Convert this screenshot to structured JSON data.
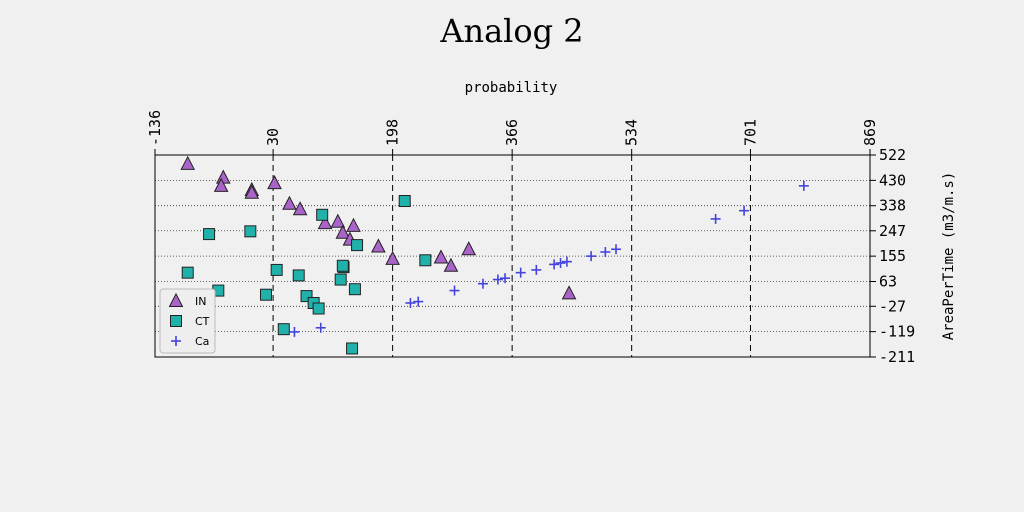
{
  "chart_data": {
    "type": "scatter",
    "title": "Analog 2",
    "xlabel": "probability",
    "ylabel": "AreaPerTime (m3/m.s)",
    "xlim": [
      -136,
      869
    ],
    "ylim": [
      -211,
      522
    ],
    "xticks": [
      "-136",
      "30",
      "198",
      "366",
      "534",
      "701",
      "869"
    ],
    "yticks": [
      "522",
      "430",
      "338",
      "247",
      "155",
      "63",
      "-27",
      "-119",
      "-211"
    ],
    "x_axis_position": "top",
    "y_axis_position": "right",
    "grid": true,
    "legend_position": "lower-left",
    "series": [
      {
        "name": "IN",
        "marker": "triangle",
        "color": "#a963c9",
        "points": [
          [
            -90,
            490
          ],
          [
            -40,
            440
          ],
          [
            -43,
            410
          ],
          [
            0,
            395
          ],
          [
            0,
            385
          ],
          [
            32,
            420
          ],
          [
            53,
            345
          ],
          [
            68,
            325
          ],
          [
            103,
            275
          ],
          [
            121,
            280
          ],
          [
            128,
            240
          ],
          [
            138,
            215
          ],
          [
            143,
            265
          ],
          [
            178,
            190
          ],
          [
            198,
            145
          ],
          [
            266,
            150
          ],
          [
            280,
            120
          ],
          [
            305,
            180
          ],
          [
            446,
            20
          ]
        ]
      },
      {
        "name": "CT",
        "marker": "square",
        "color": "#20b2aa",
        "points": [
          [
            -90,
            95
          ],
          [
            -60,
            235
          ],
          [
            -47,
            30
          ],
          [
            -2,
            245
          ],
          [
            20,
            15
          ],
          [
            35,
            105
          ],
          [
            45,
            -110
          ],
          [
            66,
            85
          ],
          [
            77,
            10
          ],
          [
            87,
            -15
          ],
          [
            94,
            -35
          ],
          [
            99,
            305
          ],
          [
            125,
            70
          ],
          [
            129,
            115
          ],
          [
            128,
            120
          ],
          [
            141,
            -180
          ],
          [
            145,
            35
          ],
          [
            148,
            195
          ],
          [
            215,
            355
          ],
          [
            244,
            140
          ]
        ]
      },
      {
        "name": "Ca",
        "marker": "plus",
        "color": "#4444dd",
        "points": [
          [
            60,
            -120
          ],
          [
            97,
            -105
          ],
          [
            223,
            -15
          ],
          [
            234,
            -10
          ],
          [
            285,
            30
          ],
          [
            325,
            55
          ],
          [
            346,
            70
          ],
          [
            356,
            75
          ],
          [
            378,
            95
          ],
          [
            400,
            105
          ],
          [
            425,
            125
          ],
          [
            434,
            130
          ],
          [
            443,
            135
          ],
          [
            477,
            155
          ],
          [
            497,
            170
          ],
          [
            512,
            180
          ],
          [
            652,
            290
          ],
          [
            692,
            320
          ],
          [
            776,
            410
          ]
        ]
      }
    ]
  }
}
